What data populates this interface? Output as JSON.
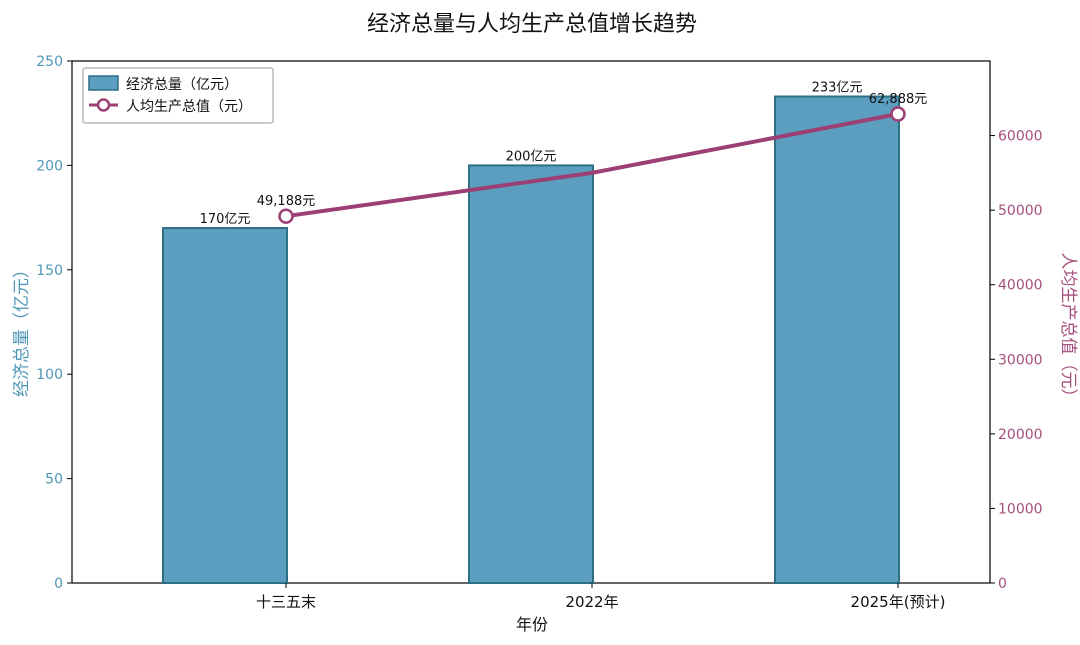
{
  "chart_data": {
    "type": "bar+line",
    "title": "经济总量与人均生产总值增长趋势",
    "xlabel": "年份",
    "categories": [
      "十三五末",
      "2022年",
      "2025年(预计)"
    ],
    "left_axis": {
      "label": "经济总量（亿元）",
      "ylim": [
        0,
        250
      ],
      "ticks": [
        0,
        50,
        100,
        150,
        200,
        250
      ]
    },
    "right_axis": {
      "label": "人均生产总值（元）",
      "ylim": [
        0,
        70000
      ],
      "ticks": [
        0,
        10000,
        20000,
        30000,
        40000,
        50000,
        60000
      ]
    },
    "series": [
      {
        "name": "经济总量（亿元）",
        "type": "bar",
        "axis": "left",
        "values": [
          170,
          200,
          233
        ],
        "labels": [
          "170亿元",
          "200亿元",
          "233亿元"
        ]
      },
      {
        "name": "人均生产总值（元）",
        "type": "line",
        "axis": "right",
        "values": [
          49188,
          55000,
          62888
        ],
        "labels": [
          "49,188元",
          "",
          "62,888元"
        ]
      }
    ],
    "legend_position": "top-left",
    "colors": {
      "bar_fill": "#5b9ebf",
      "bar_edge": "#2f6f86",
      "line": "#9c3f74",
      "left_axis": "#4f97b5",
      "right_axis": "#a44f7c"
    },
    "grid": false
  }
}
